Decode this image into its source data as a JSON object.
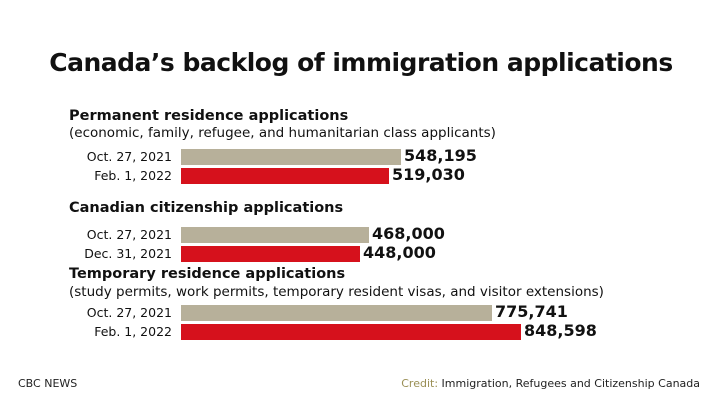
{
  "chart_data": {
    "type": "bar",
    "orientation": "horizontal",
    "title": "Canada’s backlog of immigration applications",
    "colors": {
      "earlier": "#b7b09a",
      "later": "#d6111c"
    },
    "xlim": [
      0,
      880000
    ],
    "groups": [
      {
        "title": "Permanent residence applications",
        "subtitle": "(economic, family, refugee, and humanitarian class applicants)",
        "bars": [
          {
            "label": "Oct. 27, 2021",
            "value": 548195,
            "value_label": "548,195",
            "kind": "earlier"
          },
          {
            "label": "Feb. 1, 2022",
            "value": 519030,
            "value_label": "519,030",
            "kind": "later"
          }
        ]
      },
      {
        "title": "Canadian citizenship applications",
        "subtitle": "",
        "bars": [
          {
            "label": "Oct. 27, 2021",
            "value": 468000,
            "value_label": "468,000",
            "kind": "earlier"
          },
          {
            "label": "Dec. 31, 2021",
            "value": 448000,
            "value_label": "448,000",
            "kind": "later"
          }
        ]
      },
      {
        "title": "Temporary residence applications",
        "subtitle": "(study permits, work permits, temporary resident visas, and visitor extensions)",
        "bars": [
          {
            "label": "Oct. 27, 2021",
            "value": 775741,
            "value_label": "775,741",
            "kind": "earlier"
          },
          {
            "label": "Feb. 1, 2022",
            "value": 848598,
            "value_label": "848,598",
            "kind": "later"
          }
        ]
      }
    ]
  },
  "footer": {
    "left": "CBC NEWS",
    "credit_label": "Credit:",
    "credit_text": "Immigration, Refugees and Citizenship Canada"
  }
}
